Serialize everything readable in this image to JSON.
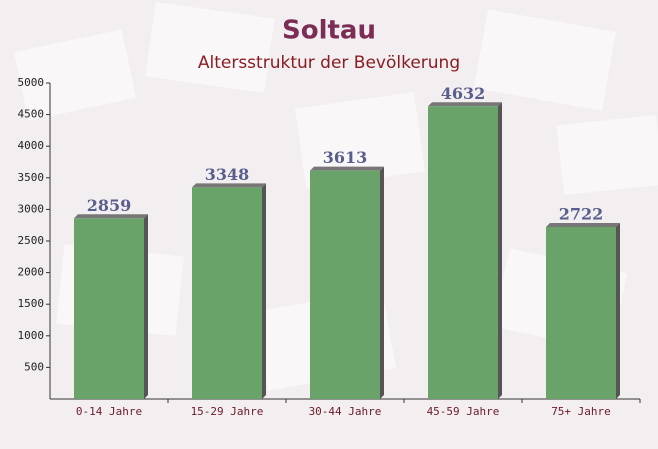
{
  "chart_data": {
    "type": "bar",
    "title": "Soltau",
    "subtitle": "Altersstruktur der Bevölkerung",
    "categories": [
      "0-14 Jahre",
      "15-29 Jahre",
      "30-44 Jahre",
      "45-59 Jahre",
      "75+ Jahre"
    ],
    "values": [
      2859,
      3348,
      3613,
      4632,
      2722
    ],
    "color": "#6aa36a",
    "ylim": [
      0,
      5000
    ],
    "yticks": [
      500,
      1000,
      1500,
      2000,
      2500,
      3000,
      3500,
      4000,
      4500,
      5000
    ],
    "grid": false
  }
}
